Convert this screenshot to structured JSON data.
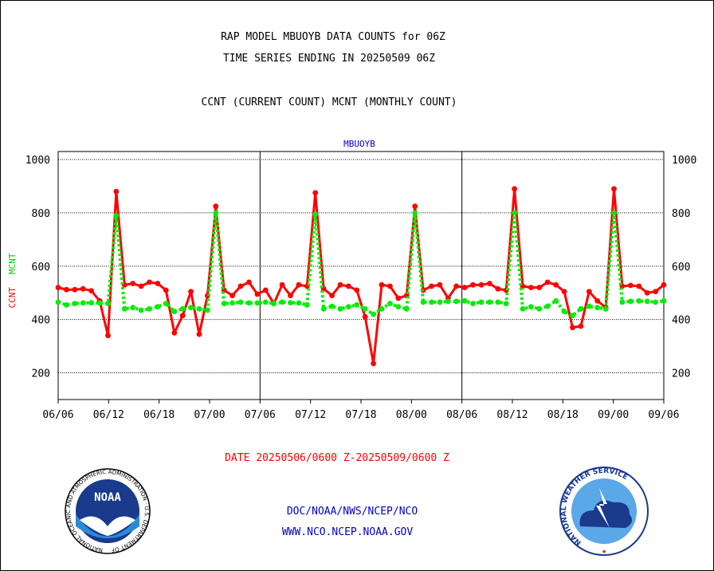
{
  "header": {
    "line1": "RAP MODEL MBUOYB DATA COUNTS for 06Z",
    "line2": "TIME SERIES ENDING IN 20250509 06Z",
    "line3": "CCNT (CURRENT COUNT) MCNT (MONTHLY COUNT)"
  },
  "footer": {
    "date_range": "DATE 20250506/0600 Z-20250509/0600 Z",
    "org_path": "DOC/NOAA/NWS/NCEP/NCO",
    "website": "WWW.NCO.NCEP.NOAA.GOV"
  },
  "logos": {
    "noaa": {
      "badge_text": "NOAA",
      "ring_text": "NATIONAL OCEANIC AND ATMOSPHERIC ADMINISTRATION · U.S. DEPARTMENT OF COMMERCE"
    },
    "nws": {
      "ring_text": "NATIONAL WEATHER SERVICE"
    }
  },
  "colors": {
    "ccnt": "#ff0000",
    "mcnt": "#00ee00",
    "title_blue": "#0000cc",
    "axis": "#000000"
  },
  "chart_data": {
    "type": "line",
    "title": "MBUOYB",
    "ylabel_ccnt": "CCNT",
    "ylabel_mcnt": "MCNT",
    "ylim": [
      100,
      1030
    ],
    "yticks": [
      200,
      400,
      600,
      800,
      1000
    ],
    "x_tick_labels": [
      "06/06",
      "06/12",
      "06/18",
      "07/00",
      "07/06",
      "07/12",
      "07/18",
      "08/00",
      "08/06",
      "08/12",
      "08/18",
      "09/00",
      "09/06"
    ],
    "grid": true,
    "series": [
      {
        "name": "CCNT",
        "style": "solid",
        "color": "#ff0000",
        "values": [
          520,
          512,
          512,
          515,
          508,
          470,
          340,
          880,
          530,
          535,
          525,
          540,
          535,
          510,
          350,
          415,
          505,
          345,
          490,
          825,
          510,
          490,
          525,
          540,
          495,
          510,
          460,
          530,
          490,
          530,
          525,
          875,
          515,
          490,
          530,
          525,
          510,
          410,
          235,
          530,
          525,
          480,
          490,
          825,
          510,
          525,
          530,
          480,
          525,
          520,
          530,
          530,
          535,
          515,
          510,
          890,
          525,
          520,
          520,
          540,
          530,
          505,
          370,
          375,
          505,
          470,
          445,
          890,
          525,
          528,
          525,
          500,
          505,
          530
        ]
      },
      {
        "name": "MCNT",
        "style": "dotted",
        "color": "#00ee00",
        "values": [
          465,
          455,
          460,
          462,
          463,
          462,
          460,
          790,
          440,
          445,
          435,
          440,
          448,
          460,
          430,
          440,
          445,
          440,
          435,
          800,
          460,
          462,
          465,
          462,
          462,
          465,
          460,
          465,
          463,
          462,
          455,
          795,
          440,
          450,
          440,
          448,
          455,
          440,
          420,
          440,
          460,
          448,
          440,
          800,
          465,
          465,
          465,
          468,
          468,
          470,
          460,
          465,
          465,
          465,
          460,
          800,
          440,
          448,
          440,
          450,
          470,
          430,
          415,
          440,
          450,
          445,
          440,
          800,
          465,
          468,
          470,
          468,
          465,
          470
        ]
      }
    ]
  }
}
